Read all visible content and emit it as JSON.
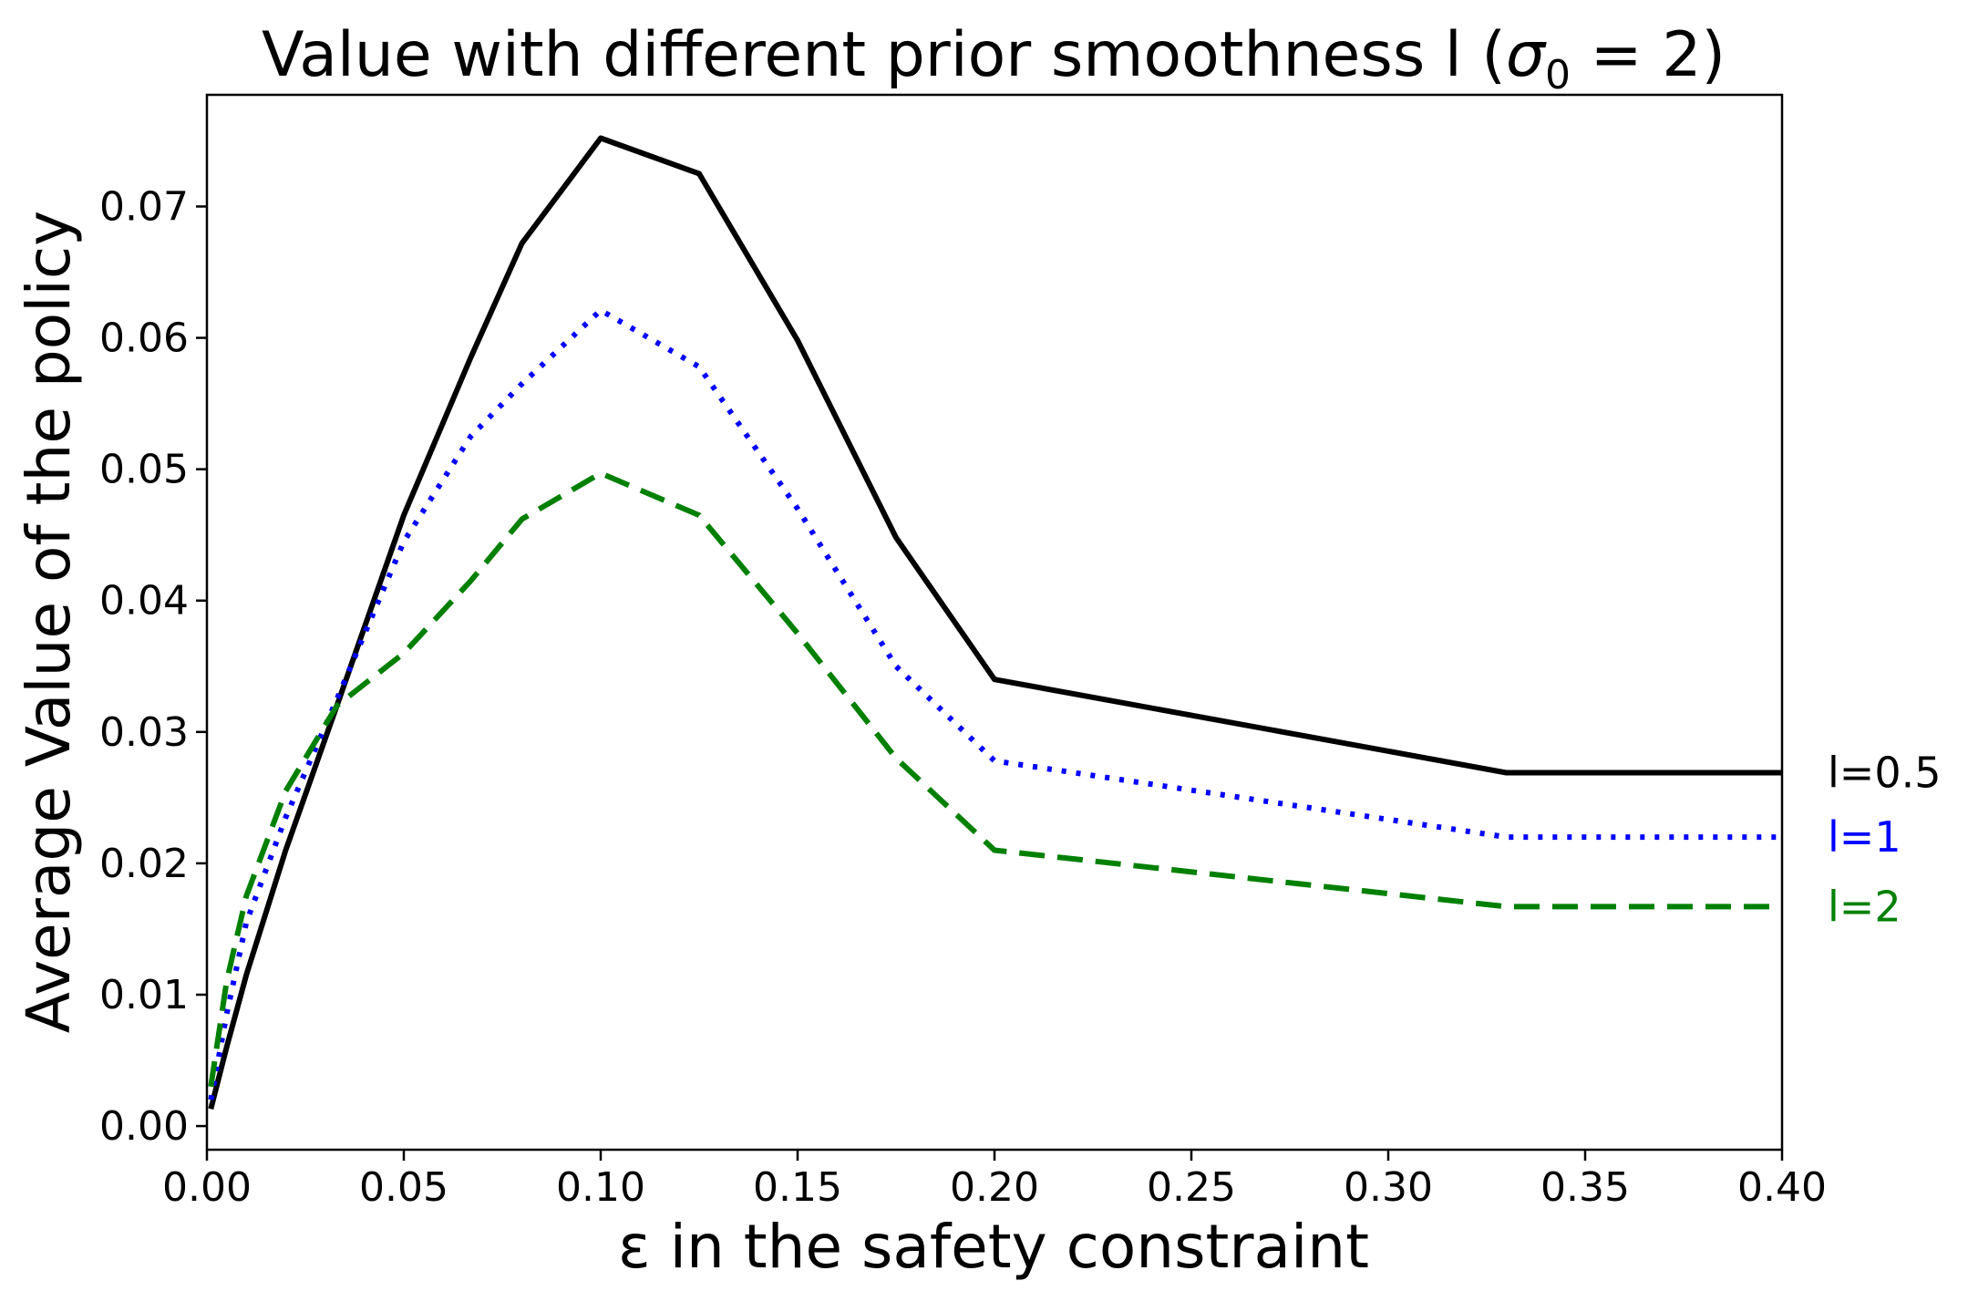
{
  "chart_data": {
    "type": "line",
    "title": "Value with different prior smoothness l (σ₀ = 2)",
    "title_parts": {
      "main": "Value with different prior smoothness l (",
      "sigma": "σ",
      "subscript": "0",
      "rest": " = 2)"
    },
    "xlabel": "ε in the safety constraint",
    "ylabel": "Average Value of the policy",
    "xlim": [
      0.0,
      0.4
    ],
    "ylim": [
      -0.0018,
      0.0785
    ],
    "xticks": [
      0.0,
      0.05,
      0.1,
      0.15,
      0.2,
      0.25,
      0.3,
      0.35,
      0.4
    ],
    "xtick_labels": [
      "0.00",
      "0.05",
      "0.10",
      "0.15",
      "0.20",
      "0.25",
      "0.30",
      "0.35",
      "0.40"
    ],
    "yticks": [
      0.0,
      0.01,
      0.02,
      0.03,
      0.04,
      0.05,
      0.06,
      0.07
    ],
    "ytick_labels": [
      "0.00",
      "0.01",
      "0.02",
      "0.03",
      "0.04",
      "0.05",
      "0.06",
      "0.07"
    ],
    "grid": false,
    "legend": "inline-right",
    "series": [
      {
        "name": "l=0.5",
        "color": "#000000",
        "style": "solid",
        "x": [
          0.001,
          0.005,
          0.01,
          0.02,
          0.033,
          0.05,
          0.067,
          0.08,
          0.1,
          0.125,
          0.15,
          0.175,
          0.2,
          0.33,
          0.4
        ],
        "y": [
          0.0013,
          0.006,
          0.0115,
          0.021,
          0.032,
          0.0465,
          0.0585,
          0.0672,
          0.0752,
          0.0725,
          0.0598,
          0.0448,
          0.034,
          0.0269,
          0.0269
        ]
      },
      {
        "name": "l=1",
        "color": "#0000ff",
        "style": "dotted",
        "x": [
          0.001,
          0.005,
          0.01,
          0.02,
          0.033,
          0.05,
          0.067,
          0.08,
          0.1,
          0.125,
          0.15,
          0.175,
          0.2,
          0.33,
          0.4
        ],
        "y": [
          0.002,
          0.0085,
          0.0155,
          0.0235,
          0.0325,
          0.0445,
          0.0525,
          0.0565,
          0.0621,
          0.0578,
          0.047,
          0.035,
          0.0278,
          0.022,
          0.022
        ]
      },
      {
        "name": "l=2",
        "color": "#008000",
        "style": "dashed",
        "x": [
          0.001,
          0.005,
          0.01,
          0.02,
          0.033,
          0.05,
          0.067,
          0.08,
          0.1,
          0.125,
          0.15,
          0.175,
          0.2,
          0.33,
          0.4
        ],
        "y": [
          0.003,
          0.011,
          0.0175,
          0.0255,
          0.032,
          0.036,
          0.0415,
          0.0462,
          0.0497,
          0.0465,
          0.0375,
          0.028,
          0.021,
          0.0167,
          0.0167
        ]
      }
    ]
  }
}
